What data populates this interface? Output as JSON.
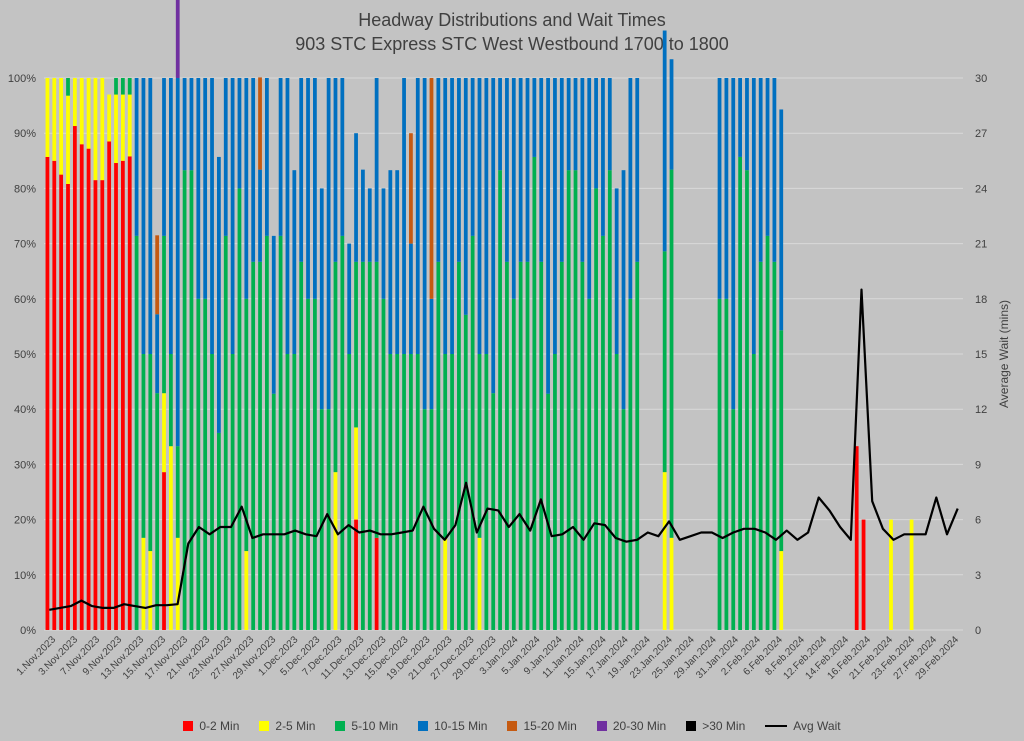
{
  "chart_data": {
    "type": "bar",
    "stacked": true,
    "title": "Headway Distributions and Wait Times",
    "subtitle": "903 STC Express  STC West Westbound 1700 to 1800",
    "y2label": "Average Wait (mins)",
    "ylim": [
      0,
      100
    ],
    "y2lim": [
      0,
      30
    ],
    "yticks": [
      "0%",
      "10%",
      "20%",
      "30%",
      "40%",
      "50%",
      "60%",
      "70%",
      "80%",
      "90%",
      "100%"
    ],
    "y2ticks": [
      "0",
      "3",
      "6",
      "9",
      "12",
      "15",
      "18",
      "21",
      "24",
      "27",
      "30"
    ],
    "grid": true,
    "legend_position": "bottom",
    "xtick_labels": [
      "1.Nov.2023",
      "3.Nov.2023",
      "7.Nov.2023",
      "9.Nov.2023",
      "13.Nov.2023",
      "15.Nov.2023",
      "17.Nov.2023",
      "21.Nov.2023",
      "23.Nov.2023",
      "27.Nov.2023",
      "29.Nov.2023",
      "1.Dec.2023",
      "5.Dec.2023",
      "7.Dec.2023",
      "11.Dec.2023",
      "13.Dec.2023",
      "15.Dec.2023",
      "19.Dec.2023",
      "21.Dec.2023",
      "27.Dec.2023",
      "29.Dec.2023",
      "3.Jan.2024",
      "5.Jan.2024",
      "9.Jan.2024",
      "11.Jan.2024",
      "15.Jan.2024",
      "17.Jan.2024",
      "19.Jan.2024",
      "23.Jan.2024",
      "25.Jan.2024",
      "29.Jan.2024",
      "31.Jan.2024",
      "2.Feb.2024",
      "6.Feb.2024",
      "8.Feb.2024",
      "12.Feb.2024",
      "14.Feb.2024",
      "16.Feb.2024",
      "21.Feb.2024",
      "23.Feb.2024",
      "27.Feb.2024",
      "29.Feb.2024"
    ],
    "series": [
      {
        "name": "0-2 Min",
        "color": "#ff0000",
        "values": [
          85.7,
          85,
          82.5,
          80.8,
          91.3,
          88,
          87.2,
          81.5,
          81.5,
          88.5,
          84.6,
          85,
          85.8,
          0,
          0,
          0,
          0,
          28.6,
          0,
          0,
          0,
          0,
          0,
          0,
          0,
          0,
          0,
          0,
          0,
          0,
          0,
          0,
          0,
          0,
          0,
          0,
          0,
          0,
          0,
          0,
          0,
          0,
          0,
          0,
          0,
          20,
          0,
          0,
          16.7,
          0,
          0,
          0,
          0,
          0,
          0,
          0,
          0,
          0,
          0,
          0,
          0,
          0,
          0,
          0,
          0,
          0,
          0,
          0,
          0,
          0,
          0,
          0,
          0,
          0,
          0,
          0,
          0,
          0,
          0,
          0,
          0,
          0,
          0,
          0,
          0,
          0,
          0,
          0,
          0,
          0,
          0,
          0,
          0,
          0,
          0,
          0,
          0,
          0,
          0,
          0,
          0,
          0,
          0,
          0,
          0,
          0,
          0,
          0,
          0,
          0,
          0,
          0,
          0,
          0,
          0,
          0,
          0,
          0,
          33.3,
          20,
          0,
          0,
          0,
          0,
          0,
          0,
          0,
          0,
          0,
          0,
          0,
          0,
          0,
          0
        ]
      },
      {
        "name": "2-5 Min",
        "color": "#ffff00",
        "values": [
          14.3,
          15,
          17.5,
          16,
          8.7,
          12,
          12.8,
          18.5,
          18.5,
          8.5,
          12.4,
          12,
          11.2,
          0,
          16.7,
          14.3,
          0,
          14.3,
          33.3,
          16.7,
          0,
          0,
          0,
          0,
          0,
          0,
          0,
          0,
          0,
          14.3,
          0,
          0,
          0,
          0,
          0,
          0,
          0,
          0,
          0,
          0,
          0,
          0,
          28.6,
          0,
          0,
          16.7,
          0,
          0,
          0,
          0,
          0,
          0,
          0,
          0,
          0,
          0,
          0,
          0,
          16.7,
          0,
          0,
          0,
          0,
          16.7,
          0,
          0,
          0,
          0,
          0,
          0,
          0,
          0,
          0,
          0,
          0,
          0,
          0,
          0,
          0,
          0,
          0,
          0,
          0,
          0,
          0,
          0,
          0,
          0,
          0,
          0,
          28.6,
          16.7,
          0,
          0,
          0,
          0,
          0,
          0,
          0,
          0,
          0,
          0,
          0,
          0,
          0,
          0,
          0,
          14.3,
          0,
          0,
          0,
          0,
          0,
          0,
          0,
          0,
          0,
          0,
          0,
          0,
          0,
          0,
          0,
          20,
          0,
          0,
          20,
          0,
          0,
          0,
          0,
          0,
          0,
          0,
          0,
          0,
          0,
          0,
          0,
          0,
          14.3,
          0,
          0
        ]
      },
      {
        "name": "5-10 Min",
        "color": "#00b050",
        "values": [
          0,
          0,
          0,
          3.2,
          0,
          0,
          0,
          0,
          0,
          0,
          3,
          3,
          3,
          71.4,
          33.3,
          35.7,
          42.9,
          28.5,
          16.7,
          16.6,
          83.3,
          83.3,
          60,
          60,
          50,
          35.7,
          71.4,
          50,
          80,
          45.7,
          66.7,
          66.7,
          71.4,
          42.8,
          71.4,
          50,
          50,
          66.7,
          60,
          60,
          40,
          40,
          38.1,
          71.4,
          50,
          30,
          66.7,
          66.7,
          50,
          60,
          50,
          50,
          50,
          50,
          50,
          40,
          40,
          66.7,
          33.3,
          50,
          66.7,
          57.1,
          71.4,
          33.3,
          50,
          42.9,
          83.3,
          66.7,
          60,
          66.7,
          66.7,
          85.7,
          66.7,
          42.8,
          50,
          66.7,
          83.3,
          83.3,
          66.7,
          60,
          80,
          71.4,
          83.3,
          50,
          40,
          60,
          66.7,
          0,
          0,
          0,
          40,
          66.7,
          0,
          0,
          0,
          0,
          0,
          0,
          60,
          60,
          40,
          85.7,
          83.3,
          50,
          66.7,
          71.4,
          66.7,
          40,
          0,
          0,
          0,
          0,
          0,
          0,
          0,
          0,
          0,
          0,
          0,
          0,
          0,
          0,
          0,
          0,
          0,
          0,
          0,
          0,
          0,
          0,
          0,
          0,
          0,
          0,
          0,
          0,
          0,
          0,
          0,
          0,
          0,
          0,
          0,
          0,
          0,
          0,
          0,
          0,
          0
        ]
      },
      {
        "name": "10-15 Min",
        "color": "#0070c0",
        "values": [
          0,
          0,
          0,
          0,
          0,
          0,
          0,
          0,
          0,
          0,
          0,
          0,
          0,
          28.6,
          50,
          50,
          14.3,
          28.6,
          50,
          66.7,
          16.7,
          16.7,
          40,
          40,
          50,
          50,
          28.6,
          50,
          20,
          40,
          33.3,
          16.7,
          28.6,
          28.6,
          28.6,
          50,
          33.3,
          33.3,
          40,
          40,
          40,
          60,
          33.3,
          28.6,
          20,
          23.3,
          16.7,
          13.3,
          33.3,
          20,
          33.3,
          33.3,
          50,
          20,
          50,
          60,
          20,
          33.3,
          50,
          50,
          33.3,
          42.9,
          28.6,
          50,
          50,
          57.1,
          16.7,
          33.3,
          40,
          33.3,
          33.3,
          14.3,
          33.3,
          57.2,
          50,
          33.3,
          16.7,
          16.7,
          33.3,
          40,
          20,
          28.6,
          16.7,
          30,
          43.3,
          40,
          33.3,
          0,
          0,
          0,
          40,
          20,
          0,
          0,
          0,
          0,
          0,
          0,
          40,
          40,
          60,
          14.3,
          16.7,
          50,
          33.3,
          28.6,
          33.3,
          40,
          0,
          0,
          0,
          0,
          0,
          0,
          0,
          0,
          0,
          0,
          0,
          0,
          0,
          0,
          0,
          0,
          0,
          0,
          0,
          0,
          0,
          0,
          0,
          0,
          0,
          0,
          0,
          0,
          0,
          0,
          0,
          0,
          0,
          0,
          0,
          0,
          0,
          0,
          0,
          0,
          0
        ]
      },
      {
        "name": "15-20 Min",
        "color": "#c55a11",
        "values": [
          0,
          0,
          0,
          0,
          0,
          0,
          0,
          0,
          0,
          0,
          0,
          0,
          0,
          0,
          0,
          0,
          14.3,
          0,
          0,
          0,
          0,
          0,
          0,
          0,
          0,
          0,
          0,
          0,
          0,
          0,
          0,
          16.7,
          0,
          0,
          0,
          0,
          0,
          0,
          0,
          0,
          0,
          0,
          0,
          0,
          0,
          0,
          0,
          0,
          0,
          0,
          0,
          0,
          0,
          20,
          0,
          0,
          40,
          0,
          0,
          0,
          0,
          0,
          0,
          0,
          0,
          0,
          0,
          0,
          0,
          0,
          0,
          0,
          0,
          0,
          0,
          0,
          0,
          0,
          0,
          0,
          0,
          0,
          0,
          0,
          0,
          0,
          0,
          0,
          0,
          0,
          0,
          0,
          0,
          0,
          0,
          0,
          0,
          0,
          0,
          0,
          0,
          0,
          0,
          0,
          0,
          0,
          0,
          0,
          0,
          0,
          0,
          0,
          0,
          0,
          0,
          0,
          0,
          0,
          0,
          0,
          0,
          0,
          0,
          0,
          0,
          0,
          0,
          0,
          0,
          0,
          0,
          0,
          0,
          0,
          0,
          0,
          0,
          0,
          0,
          0,
          0,
          0,
          0,
          0,
          0,
          20
        ]
      },
      {
        "name": "20-30 Min",
        "color": "#7030a0",
        "values": [
          0,
          0,
          0,
          0,
          0,
          0,
          0,
          0,
          0,
          0,
          0,
          0,
          0,
          0,
          0,
          0,
          0,
          0,
          0,
          16.7,
          0,
          0,
          0,
          0,
          0,
          0,
          0,
          0,
          0,
          0,
          0,
          0,
          0,
          0,
          0,
          0,
          0,
          0,
          0,
          0,
          0,
          0,
          0,
          0,
          0,
          0,
          0,
          0,
          0,
          0,
          0,
          0,
          0,
          0,
          0,
          0,
          0,
          0,
          0,
          0,
          0,
          0,
          0,
          0,
          0,
          0,
          0,
          0,
          0,
          0,
          0,
          0,
          0,
          0,
          0,
          0,
          0,
          0,
          0,
          0,
          0,
          0,
          0,
          0,
          0,
          0,
          0,
          0,
          0,
          0,
          0,
          0,
          0,
          0,
          0,
          0,
          0,
          0,
          0,
          0,
          0,
          0,
          0,
          0,
          0,
          0,
          0,
          0,
          0,
          0,
          0,
          0,
          0,
          0,
          0,
          0,
          0,
          0,
          0,
          0,
          0,
          0,
          0,
          0,
          0,
          0,
          0,
          0,
          0,
          0,
          0,
          0,
          0,
          0,
          0,
          0,
          0,
          0,
          0,
          0,
          0,
          0,
          0,
          0,
          0
        ]
      },
      {
        "name": ">30 Min",
        "color": "#000000",
        "values": [
          0,
          0,
          0,
          0,
          0,
          0,
          0,
          0,
          0,
          0,
          0,
          0,
          0,
          0,
          0,
          0,
          0,
          0,
          0,
          0,
          0,
          0,
          0,
          0,
          0,
          0,
          0,
          0,
          0,
          0,
          0,
          0,
          0,
          0,
          0,
          0,
          0,
          0,
          0,
          0,
          0,
          0,
          0,
          0,
          0,
          0,
          0,
          0,
          0,
          0,
          0,
          0,
          0,
          0,
          0,
          0,
          0,
          0,
          0,
          0,
          0,
          0,
          0,
          0,
          0,
          0,
          0,
          0,
          0,
          0,
          0,
          0,
          0,
          0,
          0,
          0,
          0,
          0,
          0,
          0,
          0,
          0,
          0,
          0,
          0,
          0,
          0,
          0,
          0,
          0,
          0,
          0,
          0,
          0,
          0,
          0,
          0,
          0,
          0,
          0,
          0,
          0,
          0,
          0,
          0,
          0,
          0,
          0,
          0,
          0,
          0,
          0,
          0,
          0,
          0,
          0,
          0,
          0,
          0,
          0,
          0,
          0,
          0,
          0,
          0,
          0,
          0,
          0,
          0,
          0,
          0,
          0,
          0,
          0,
          0,
          0,
          0,
          0,
          0,
          0,
          0,
          0,
          0,
          0,
          0,
          0
        ]
      }
    ],
    "avg_wait": {
      "name": "Avg Wait",
      "color": "#000000",
      "values": [
        1.1,
        1.2,
        1.3,
        1.6,
        1.3,
        1.2,
        1.2,
        1.4,
        1.3,
        1.2,
        1.35,
        1.35,
        1.4,
        4.7,
        5.6,
        5.2,
        5.6,
        5.6,
        6.7,
        5.0,
        5.2,
        5.2,
        5.2,
        5.4,
        5.2,
        5.1,
        6.3,
        5.2,
        5.7,
        5.3,
        5.4,
        5.2,
        5.2,
        5.3,
        5.4,
        6.7,
        5.5,
        4.9,
        5.7,
        8.0,
        5.3,
        6.6,
        6.5,
        5.6,
        6.3,
        5.4,
        7.1,
        5.1,
        5.2,
        5.6,
        4.9,
        5.8,
        5.7,
        5.0,
        4.8,
        4.9,
        5.3,
        5.1,
        5.9,
        4.9,
        5.1,
        5.3,
        5.3,
        5.0,
        5.3,
        5.5,
        5.5,
        5.3,
        4.9,
        5.4,
        4.9,
        5.3,
        7.2,
        6.5,
        5.6,
        4.9,
        18.5,
        7.0,
        5.5,
        4.9,
        5.2,
        5.2,
        5.2,
        7.2,
        5.2,
        6.6
      ]
    }
  },
  "legend": {
    "items": [
      {
        "label": "0-2 Min",
        "color": "#ff0000"
      },
      {
        "label": "2-5 Min",
        "color": "#ffff00"
      },
      {
        "label": "5-10 Min",
        "color": "#00b050"
      },
      {
        "label": "10-15 Min",
        "color": "#0070c0"
      },
      {
        "label": "15-20 Min",
        "color": "#c55a11"
      },
      {
        "label": "20-30 Min",
        "color": "#7030a0"
      },
      {
        "label": ">30 Min",
        "color": "#000000"
      }
    ],
    "line_label": "Avg Wait"
  }
}
